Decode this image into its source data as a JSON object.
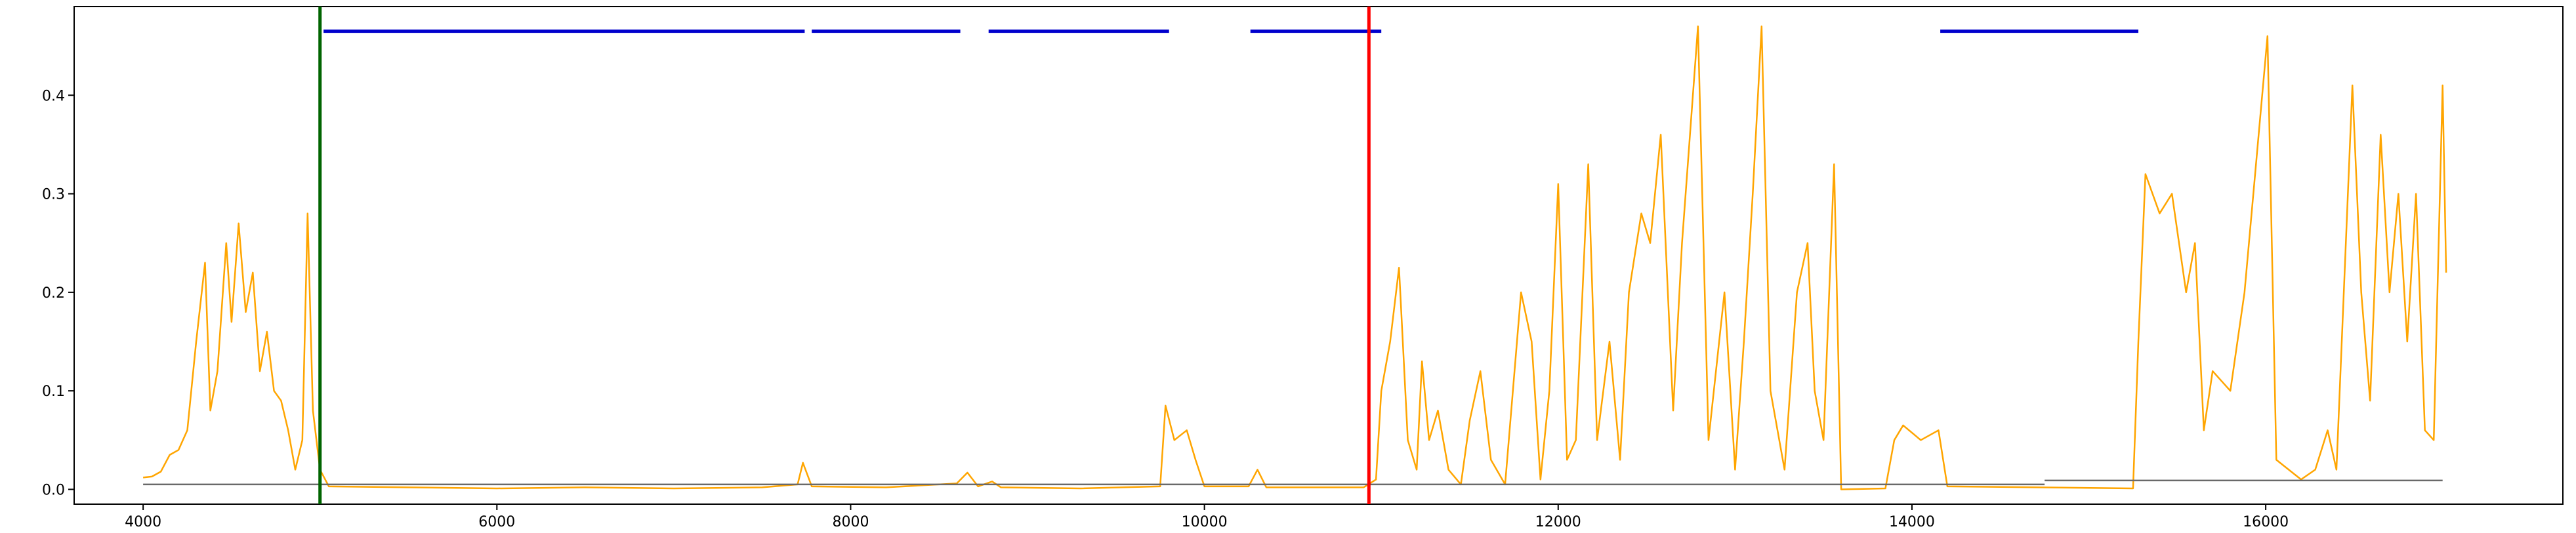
{
  "chart_data": {
    "type": "line",
    "xlim": [
      3610,
      17680
    ],
    "ylim": [
      -0.015,
      0.49
    ],
    "xticks": [
      4000,
      6000,
      8000,
      10000,
      12000,
      14000,
      16000
    ],
    "yticks": [
      {
        "value": 0,
        "label": "0.0"
      },
      0.1,
      0.2,
      0.3,
      0.4
    ],
    "series": [
      {
        "color": "#ffa500",
        "x": [
          4000,
          4050,
          4100,
          4150,
          4200,
          4250,
          4300,
          4350,
          4380,
          4420,
          4470,
          4500,
          4540,
          4580,
          4620,
          4660,
          4700,
          4740,
          4780,
          4820,
          4860,
          4900,
          4930,
          4960,
          5000,
          5050,
          5500,
          6000,
          6500,
          7000,
          7500,
          7700,
          7730,
          7780,
          8200,
          8600,
          8660,
          8720,
          8800,
          8850,
          9300,
          9750,
          9780,
          9830,
          9900,
          9950,
          10000,
          10250,
          10300,
          10350,
          10900,
          10970,
          11000,
          11050,
          11100,
          11150,
          11200,
          11230,
          11270,
          11320,
          11380,
          11450,
          11500,
          11560,
          11620,
          11700,
          11790,
          11850,
          11900,
          11950,
          12000,
          12050,
          12100,
          12170,
          12220,
          12290,
          12350,
          12400,
          12470,
          12520,
          12580,
          12650,
          12700,
          12790,
          12850,
          12940,
          13000,
          13050,
          13100,
          13150,
          13200,
          13280,
          13350,
          13410,
          13450,
          13500,
          13560,
          13600,
          13850,
          13900,
          13950,
          14050,
          14150,
          14200,
          15250,
          15280,
          15320,
          15400,
          15470,
          15550,
          15600,
          15650,
          15700,
          15800,
          15880,
          16010,
          16060,
          16200,
          16280,
          16350,
          16400,
          16490,
          16540,
          16590,
          16650,
          16700,
          16750,
          16800,
          16850,
          16900,
          16950,
          17000,
          17020
        ],
        "values": [
          0.012,
          0.013,
          0.018,
          0.035,
          0.04,
          0.06,
          0.15,
          0.23,
          0.08,
          0.12,
          0.25,
          0.17,
          0.27,
          0.18,
          0.22,
          0.12,
          0.16,
          0.1,
          0.09,
          0.06,
          0.02,
          0.05,
          0.28,
          0.08,
          0.02,
          0.003,
          0.002,
          0.001,
          0.002,
          0.001,
          0.002,
          0.005,
          0.027,
          0.003,
          0.002,
          0.006,
          0.017,
          0.003,
          0.008,
          0.002,
          0.001,
          0.003,
          0.085,
          0.05,
          0.06,
          0.03,
          0.003,
          0.003,
          0.02,
          0.002,
          0.002,
          0.01,
          0.1,
          0.15,
          0.225,
          0.05,
          0.02,
          0.13,
          0.05,
          0.08,
          0.02,
          0.005,
          0.07,
          0.12,
          0.03,
          0.005,
          0.2,
          0.15,
          0.01,
          0.1,
          0.31,
          0.03,
          0.05,
          0.33,
          0.05,
          0.15,
          0.03,
          0.2,
          0.28,
          0.25,
          0.36,
          0.08,
          0.25,
          0.47,
          0.05,
          0.2,
          0.02,
          0.15,
          0.3,
          0.47,
          0.1,
          0.02,
          0.2,
          0.25,
          0.1,
          0.05,
          0.33,
          0.0,
          0.001,
          0.05,
          0.065,
          0.05,
          0.06,
          0.003,
          0.001,
          0.15,
          0.32,
          0.28,
          0.3,
          0.2,
          0.25,
          0.06,
          0.12,
          0.1,
          0.2,
          0.46,
          0.03,
          0.01,
          0.02,
          0.06,
          0.02,
          0.41,
          0.2,
          0.09,
          0.36,
          0.2,
          0.3,
          0.15,
          0.3,
          0.06,
          0.05,
          0.41,
          0.22
        ]
      },
      {
        "color": "#696969",
        "x": [
          4000,
          14750
        ],
        "values": [
          0.005,
          0.005
        ]
      },
      {
        "color": "#696969",
        "x": [
          14750,
          17000
        ],
        "values": [
          0.009,
          0.009
        ]
      },
      {
        "color": "#0000cd",
        "x": [
          5020,
          7740,
          7760,
          7780,
          8620,
          8700,
          8780,
          9800,
          10000,
          10260,
          11000,
          12000,
          14160,
          15280
        ],
        "values": [
          0.465,
          0.465,
          null,
          0.465,
          0.465,
          null,
          0.465,
          0.465,
          null,
          0.465,
          0.465,
          null,
          0.465,
          0.465
        ]
      }
    ],
    "vlines": [
      {
        "x": 5000,
        "color": "#006400"
      },
      {
        "x": 10930,
        "color": "#ff0000"
      }
    ]
  }
}
